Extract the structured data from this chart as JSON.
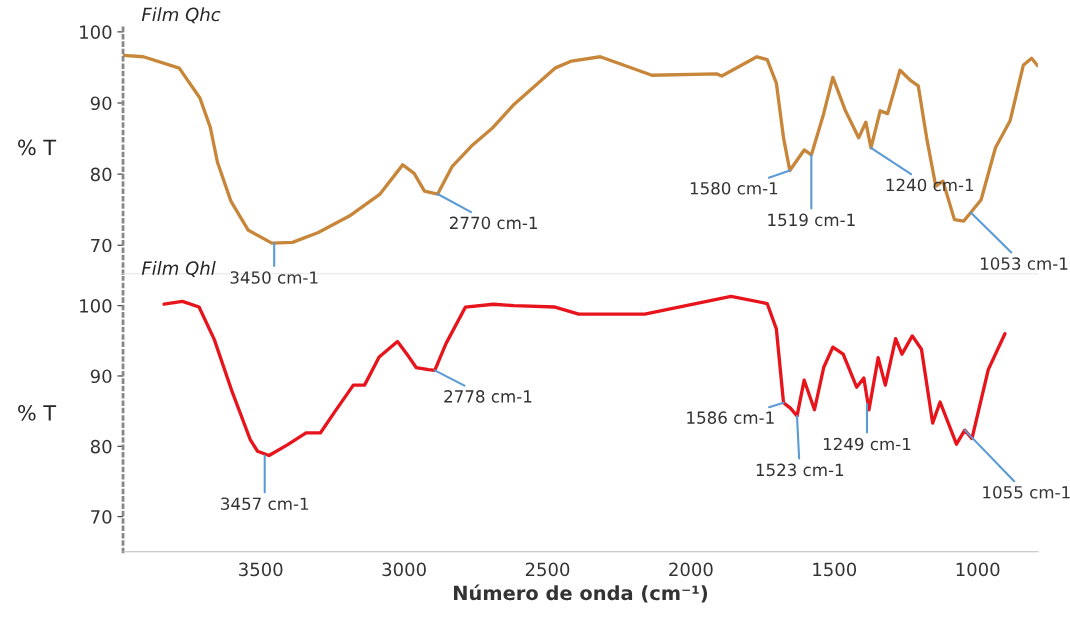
{
  "chart_data": [
    {
      "type": "line",
      "title": "Film Qhc",
      "ylabel": "% T",
      "xlim": [
        3980,
        790
      ],
      "ylim": [
        66,
        101
      ],
      "yticks": [
        70,
        80,
        90,
        100
      ],
      "tick_labels": "y",
      "grid": false,
      "legend": false,
      "series": [
        {
          "color": "#c8863a",
          "x": [
            3980,
            3909,
            3784,
            3712,
            3676,
            3651,
            3604,
            3543,
            3461,
            3389,
            3299,
            3191,
            3084,
            3005,
            2965,
            2929,
            2883,
            2832,
            2761,
            2689,
            2617,
            2474,
            2416,
            2316,
            2136,
            1910,
            1892,
            1770,
            1734,
            1702,
            1677,
            1655,
            1605,
            1580,
            1537,
            1505,
            1461,
            1415,
            1390,
            1372,
            1340,
            1314,
            1271,
            1232,
            1207,
            1178,
            1146,
            1121,
            1081,
            1049,
            1024,
            988,
            938,
            887,
            841,
            812,
            790
          ],
          "values": [
            96.7,
            96.5,
            94.9,
            90.7,
            86.6,
            81.7,
            76.2,
            72.1,
            70.3,
            70.4,
            71.8,
            74.1,
            77.2,
            81.3,
            80.1,
            77.6,
            77.2,
            81.1,
            84.1,
            86.6,
            89.8,
            94.9,
            95.9,
            96.5,
            93.9,
            94.1,
            93.8,
            96.5,
            96.1,
            92.8,
            85.1,
            80.5,
            83.4,
            82.7,
            88.5,
            93.6,
            88.9,
            85.1,
            87.3,
            83.7,
            88.9,
            88.5,
            94.6,
            93.1,
            92.4,
            85.1,
            78.3,
            79.0,
            73.6,
            73.4,
            74.6,
            76.4,
            83.7,
            87.5,
            95.3,
            96.3,
            95.2
          ]
        }
      ],
      "annotations": [
        {
          "text": "3450 cm-1",
          "x": 3453,
          "y": 70.3
        },
        {
          "text": "2770 cm-1",
          "x": 2883,
          "y": 77.2
        },
        {
          "text": "1580 cm-1",
          "x": 1655,
          "y": 80.5
        },
        {
          "text": "1519 cm-1",
          "x": 1580,
          "y": 82.7
        },
        {
          "text": "1240 cm-1",
          "x": 1372,
          "y": 83.7
        },
        {
          "text": "1053 cm-1",
          "x": 1024,
          "y": 74.6
        }
      ]
    },
    {
      "type": "line",
      "title": "Film Qhl",
      "ylabel": "% T",
      "xlabel": "Número de onda (cm⁻¹)",
      "xlim": [
        3980,
        790
      ],
      "xticks": [
        3500,
        3000,
        2500,
        2000,
        1500,
        1000
      ],
      "ylim": [
        65,
        104
      ],
      "yticks": [
        70,
        80,
        90,
        100
      ],
      "grid": false,
      "legend": false,
      "series": [
        {
          "color": "#e8141c",
          "x": [
            3837,
            3773,
            3715,
            3662,
            3600,
            3536,
            3511,
            3471,
            3407,
            3342,
            3292,
            3242,
            3177,
            3138,
            3087,
            3023,
            2990,
            2958,
            2915,
            2893,
            2854,
            2786,
            2689,
            2617,
            2474,
            2391,
            2161,
            1860,
            1734,
            1702,
            1677,
            1652,
            1630,
            1605,
            1569,
            1537,
            1505,
            1469,
            1422,
            1397,
            1379,
            1347,
            1322,
            1286,
            1264,
            1228,
            1196,
            1157,
            1131,
            1074,
            1045,
            1020,
            963,
            905
          ],
          "values": [
            100.2,
            100.6,
            99.8,
            95.2,
            87.8,
            80.9,
            79.3,
            78.7,
            80.2,
            81.9,
            81.9,
            84.9,
            88.7,
            88.7,
            92.7,
            94.9,
            93.1,
            91.2,
            90.9,
            90.8,
            94.6,
            99.8,
            100.2,
            100.0,
            99.8,
            98.8,
            98.8,
            101.3,
            100.3,
            96.7,
            86.2,
            85.4,
            84.3,
            89.4,
            85.2,
            91.2,
            94.1,
            93.1,
            88.4,
            89.7,
            85.2,
            92.6,
            88.7,
            95.3,
            93.1,
            95.7,
            93.8,
            83.3,
            86.3,
            80.3,
            82.3,
            81.1,
            90.9,
            96.0
          ]
        }
      ],
      "annotations": [
        {
          "text": "3457 cm-1",
          "x": 3486,
          "y": 78.7
        },
        {
          "text": "2778 cm-1",
          "x": 2893,
          "y": 90.8
        },
        {
          "text": "1586 cm-1",
          "x": 1677,
          "y": 86.2
        },
        {
          "text": "1523 cm-1",
          "x": 1630,
          "y": 84.3
        },
        {
          "text": "1249 cm-1",
          "x": 1386,
          "y": 86.0
        },
        {
          "text": "1055 cm-1",
          "x": 1045,
          "y": 82.3
        }
      ]
    }
  ]
}
